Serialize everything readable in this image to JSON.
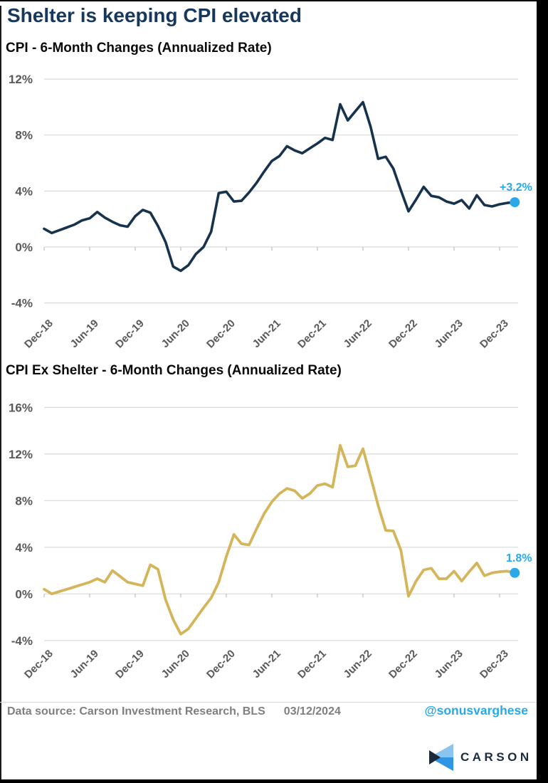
{
  "page": {
    "title": "Shelter is keeping CPI elevated"
  },
  "colors": {
    "title_navy": "#17375d",
    "navy_line": "#16324c",
    "gold_line": "#d5b55a",
    "accent_blue": "#29a9ea",
    "grid": "#d9d9d9",
    "tick": "#bfbfbf",
    "axis_text": "#595959",
    "footer_gray": "#7f7f7f",
    "logo_navy": "#1b2a3d",
    "logo_light_blue": "#8ac5f0",
    "logo_mid_blue": "#2f96e3"
  },
  "chart_data": [
    {
      "type": "line",
      "title": "CPI - 6-Month Changes (Annualized Rate)",
      "series_name": "cpi",
      "line_color": "#16324c",
      "annotation": "+3.2%",
      "grid": true,
      "legend": false,
      "ylim": [
        -4,
        12
      ],
      "yticks": [
        12,
        8,
        4,
        0,
        -4
      ],
      "ytick_suffix": "%",
      "xtick_labels": [
        "Dec-18",
        "Jun-19",
        "Dec-19",
        "Jun-20",
        "Dec-20",
        "Jun-21",
        "Dec-21",
        "Jun-22",
        "Dec-22",
        "Jun-23",
        "Dec-23"
      ],
      "months": [
        "Dec-18",
        "Jan-19",
        "Feb-19",
        "Mar-19",
        "Apr-19",
        "May-19",
        "Jun-19",
        "Jul-19",
        "Aug-19",
        "Sep-19",
        "Oct-19",
        "Nov-19",
        "Dec-19",
        "Jan-20",
        "Feb-20",
        "Mar-20",
        "Apr-20",
        "May-20",
        "Jun-20",
        "Jul-20",
        "Aug-20",
        "Sep-20",
        "Oct-20",
        "Nov-20",
        "Dec-20",
        "Jan-21",
        "Feb-21",
        "Mar-21",
        "Apr-21",
        "May-21",
        "Jun-21",
        "Jul-21",
        "Aug-21",
        "Sep-21",
        "Oct-21",
        "Nov-21",
        "Dec-21",
        "Jan-22",
        "Feb-22",
        "Mar-22",
        "Apr-22",
        "May-22",
        "Jun-22",
        "Jul-22",
        "Aug-22",
        "Sep-22",
        "Oct-22",
        "Nov-22",
        "Dec-22",
        "Jan-23",
        "Feb-23",
        "Mar-23",
        "Apr-23",
        "May-23",
        "Jun-23",
        "Jul-23",
        "Aug-23",
        "Sep-23",
        "Oct-23",
        "Nov-23",
        "Dec-23",
        "Jan-24",
        "Feb-24"
      ],
      "values": [
        1.3,
        1.0,
        1.2,
        1.4,
        1.6,
        1.9,
        2.05,
        2.5,
        2.1,
        1.8,
        1.55,
        1.45,
        2.2,
        2.65,
        2.45,
        1.5,
        0.35,
        -1.4,
        -1.7,
        -1.3,
        -0.5,
        0.0,
        1.1,
        3.85,
        3.95,
        3.25,
        3.3,
        3.9,
        4.6,
        5.4,
        6.15,
        6.5,
        7.2,
        6.9,
        6.7,
        7.05,
        7.4,
        7.8,
        7.65,
        10.2,
        9.05,
        9.7,
        10.35,
        8.6,
        6.3,
        6.45,
        5.6,
        4.05,
        2.55,
        3.4,
        4.3,
        3.65,
        3.55,
        3.25,
        3.1,
        3.35,
        2.75,
        3.7,
        3.0,
        2.9,
        3.05,
        3.15,
        3.2
      ]
    },
    {
      "type": "line",
      "title": "CPI Ex Shelter - 6-Month Changes (Annualized Rate)",
      "series_name": "cpi-ex-shelter",
      "line_color": "#d5b55a",
      "annotation": "1.8%",
      "grid": true,
      "legend": false,
      "ylim": [
        -4,
        16
      ],
      "yticks": [
        16,
        12,
        8,
        4,
        0,
        -4
      ],
      "ytick_suffix": "%",
      "xtick_labels": [
        "Dec-18",
        "Jun-19",
        "Dec-19",
        "Jun-20",
        "Dec-20",
        "Jun-21",
        "Dec-21",
        "Jun-22",
        "Dec-22",
        "Jun-23",
        "Dec-23"
      ],
      "months": [
        "Dec-18",
        "Jan-19",
        "Feb-19",
        "Mar-19",
        "Apr-19",
        "May-19",
        "Jun-19",
        "Jul-19",
        "Aug-19",
        "Sep-19",
        "Oct-19",
        "Nov-19",
        "Dec-19",
        "Jan-20",
        "Feb-20",
        "Mar-20",
        "Apr-20",
        "May-20",
        "Jun-20",
        "Jul-20",
        "Aug-20",
        "Sep-20",
        "Oct-20",
        "Nov-20",
        "Dec-20",
        "Jan-21",
        "Feb-21",
        "Mar-21",
        "Apr-21",
        "May-21",
        "Jun-21",
        "Jul-21",
        "Aug-21",
        "Sep-21",
        "Oct-21",
        "Nov-21",
        "Dec-21",
        "Jan-22",
        "Feb-22",
        "Mar-22",
        "Apr-22",
        "May-22",
        "Jun-22",
        "Jul-22",
        "Aug-22",
        "Sep-22",
        "Oct-22",
        "Nov-22",
        "Dec-22",
        "Jan-23",
        "Feb-23",
        "Mar-23",
        "Apr-23",
        "May-23",
        "Jun-23",
        "Jul-23",
        "Aug-23",
        "Sep-23",
        "Oct-23",
        "Nov-23",
        "Dec-23",
        "Jan-24",
        "Feb-24"
      ],
      "values": [
        0.4,
        0.0,
        0.2,
        0.4,
        0.6,
        0.8,
        1.0,
        1.3,
        1.0,
        2.0,
        1.5,
        1.0,
        0.85,
        0.7,
        2.5,
        2.1,
        -0.5,
        -2.2,
        -3.45,
        -3.0,
        -2.1,
        -1.2,
        -0.35,
        1.0,
        3.2,
        5.1,
        4.3,
        4.2,
        5.6,
        6.9,
        7.9,
        8.6,
        9.05,
        8.85,
        8.2,
        8.6,
        9.3,
        9.45,
        9.15,
        12.75,
        10.9,
        11.0,
        12.45,
        10.05,
        7.6,
        5.45,
        5.4,
        3.75,
        -0.2,
        1.1,
        2.05,
        2.2,
        1.3,
        1.3,
        1.95,
        1.1,
        1.9,
        2.65,
        1.55,
        1.8,
        1.9,
        1.95,
        1.8
      ]
    }
  ],
  "footer": {
    "source": "Data source: Carson Investment Research, BLS",
    "date": "03/12/2024",
    "handle": "@sonusvarghese"
  },
  "logo": {
    "text": "CARSON"
  }
}
